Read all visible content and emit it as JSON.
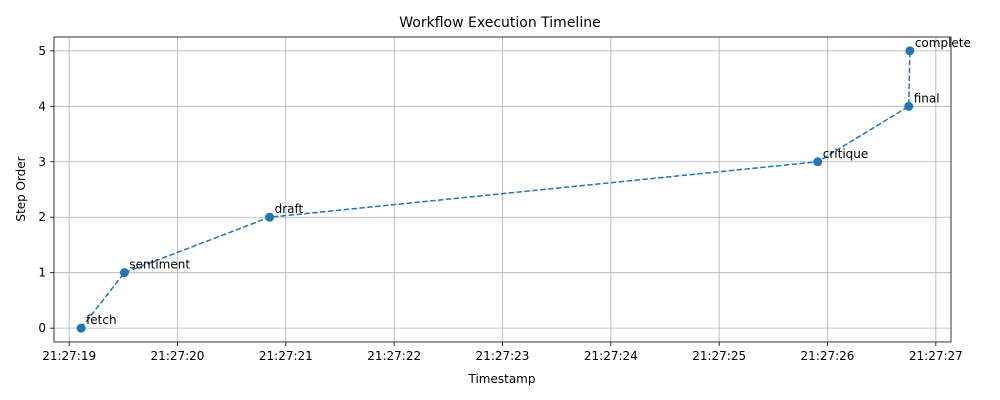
{
  "chart_data": {
    "type": "line",
    "title": "Workflow Execution Timeline",
    "xlabel": "Timestamp",
    "ylabel": "Step Order",
    "x_ticks": [
      "21:27:19",
      "21:27:20",
      "21:27:21",
      "21:27:22",
      "21:27:23",
      "21:27:24",
      "21:27:25",
      "21:27:26",
      "21:27:27"
    ],
    "y_ticks": [
      0,
      1,
      2,
      3,
      4,
      5
    ],
    "xlim": [
      "21:27:18.86",
      "21:27:27.14"
    ],
    "ylim": [
      -0.25,
      5.25
    ],
    "grid": true,
    "series": [
      {
        "line_style": "dashed",
        "marker": "circle",
        "color": "#1f77b4",
        "points": [
          {
            "x": "21:27:19.11",
            "y": 0,
            "label": "fetch"
          },
          {
            "x": "21:27:19.51",
            "y": 1,
            "label": "sentiment"
          },
          {
            "x": "21:27:20.85",
            "y": 2,
            "label": "draft"
          },
          {
            "x": "21:27:25.91",
            "y": 3,
            "label": "critique"
          },
          {
            "x": "21:27:26.75",
            "y": 4,
            "label": "final"
          },
          {
            "x": "21:27:26.76",
            "y": 5,
            "label": "complete"
          }
        ]
      }
    ]
  }
}
